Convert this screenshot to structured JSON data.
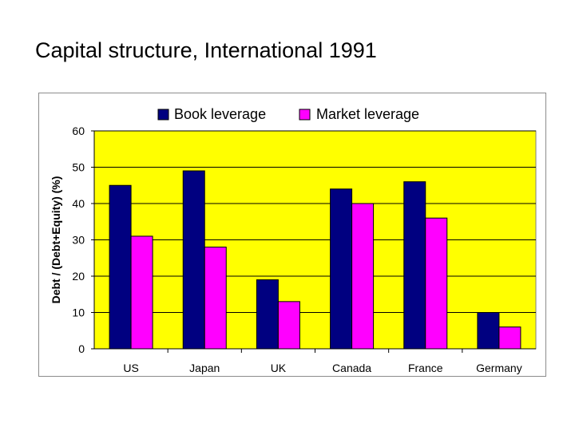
{
  "slide": {
    "title": "Capital structure, International 1991"
  },
  "chart_data": {
    "type": "bar",
    "title": "",
    "categories": [
      "US",
      "Japan",
      "UK",
      "Canada",
      "France",
      "Germany"
    ],
    "series": [
      {
        "name": "Book leverage",
        "values": [
          45,
          49,
          19,
          44,
          46,
          10
        ],
        "color": "#000080"
      },
      {
        "name": "Market leverage",
        "values": [
          31,
          28,
          13,
          40,
          36,
          6
        ],
        "color": "#ff00ff"
      }
    ],
    "xlabel": "",
    "ylabel": "Debt / (Debt+Equity) (%)",
    "ylim": [
      0,
      60
    ],
    "yticks": [
      0,
      10,
      20,
      30,
      40,
      50,
      60
    ],
    "grid": true,
    "legend": "top",
    "plot_background": "#ffff00"
  }
}
